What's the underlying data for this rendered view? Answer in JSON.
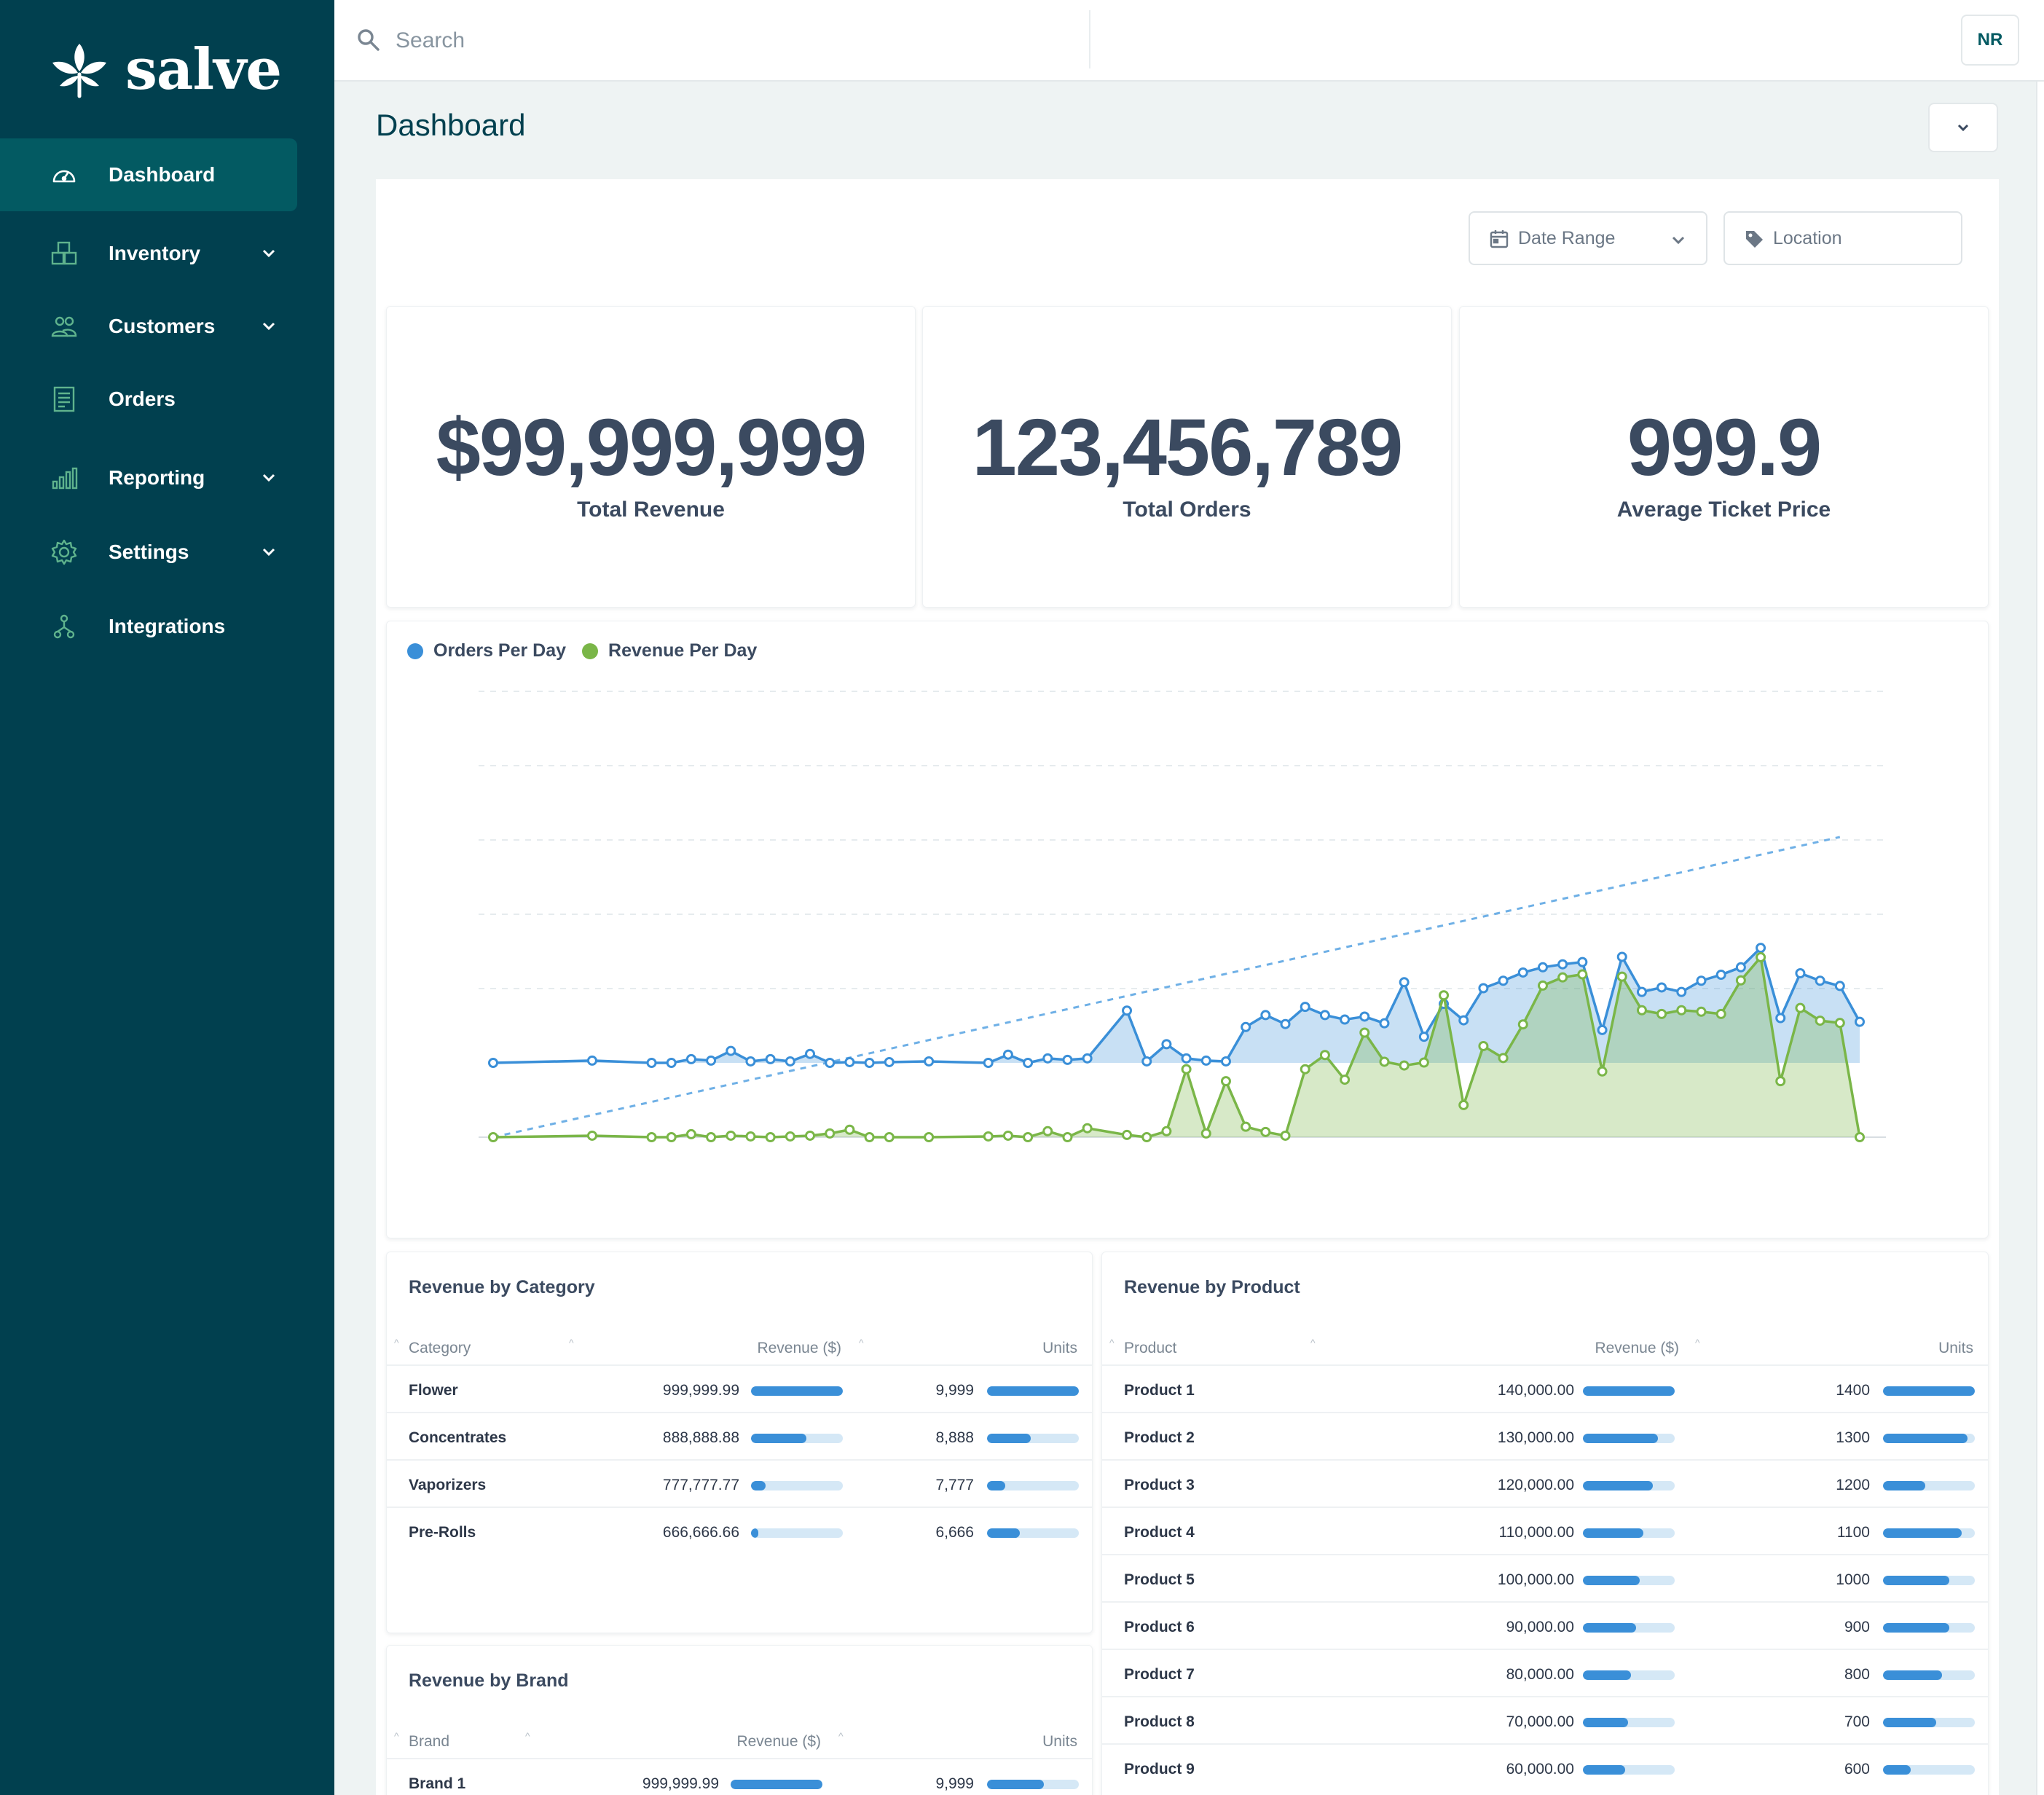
{
  "app": {
    "brand": "salve",
    "avatar_initials": "NR"
  },
  "colors": {
    "sidebar": "#01404f",
    "active": "#035a62",
    "orders": "#3a8fd8",
    "revenue": "#7ab648",
    "text": "#3b4a60"
  },
  "search": {
    "placeholder": "Search"
  },
  "sidebar": {
    "items": [
      {
        "label": "Dashboard",
        "icon": "gauge-icon",
        "active": true,
        "has_chevron": false
      },
      {
        "label": "Inventory",
        "icon": "boxes-icon",
        "active": false,
        "has_chevron": true
      },
      {
        "label": "Customers",
        "icon": "users-icon",
        "active": false,
        "has_chevron": true
      },
      {
        "label": "Orders",
        "icon": "receipt-icon",
        "active": false,
        "has_chevron": false
      },
      {
        "label": "Reporting",
        "icon": "bar-chart-icon",
        "active": false,
        "has_chevron": true
      },
      {
        "label": "Settings",
        "icon": "gear-icon",
        "active": false,
        "has_chevron": true
      },
      {
        "label": "Integrations",
        "icon": "network-icon",
        "active": false,
        "has_chevron": false
      }
    ]
  },
  "page": {
    "title": "Dashboard"
  },
  "filters": {
    "date_range": "Date Range",
    "location": "Location"
  },
  "kpis": [
    {
      "value": "$99,999,999",
      "label": "Total Revenue"
    },
    {
      "value": "123,456,789",
      "label": "Total Orders"
    },
    {
      "value": "999.9",
      "label": "Average Ticket Price"
    }
  ],
  "chart_data": {
    "type": "area",
    "series": [
      {
        "name": "Orders Per Day",
        "color": "#3a8fd8",
        "values": [
          0.0,
          0.03,
          0.0,
          0.0,
          0.05,
          0.03,
          0.16,
          0.02,
          0.05,
          0.02,
          0.12,
          0.0,
          0.01,
          0.0,
          0.01,
          0.02,
          0.0,
          0.11,
          0.0,
          0.06,
          0.04,
          0.06,
          0.7,
          0.02,
          0.25,
          0.06,
          0.03,
          0.02,
          0.48,
          0.64,
          0.52,
          0.75,
          0.64,
          0.58,
          0.62,
          0.53,
          1.08,
          0.35,
          0.79,
          0.57,
          1.0,
          1.1,
          1.21,
          1.28,
          1.32,
          1.35,
          0.44,
          1.42,
          0.95,
          1.01,
          0.95,
          1.1,
          1.18,
          1.28,
          1.54,
          0.6,
          1.2,
          1.1,
          1.03,
          0.55
        ]
      },
      {
        "name": "Revenue Per Day",
        "color": "#7ab648",
        "values": [
          0.0,
          0.02,
          0.0,
          0.0,
          0.04,
          0.0,
          0.02,
          0.01,
          0.0,
          0.01,
          0.02,
          0.05,
          0.1,
          0.0,
          0.0,
          0.0,
          0.01,
          0.02,
          0.0,
          0.08,
          0.0,
          0.12,
          0.03,
          0.0,
          0.08,
          0.91,
          0.05,
          0.75,
          0.14,
          0.07,
          0.02,
          0.91,
          1.1,
          0.77,
          1.4,
          1.01,
          0.96,
          1.0,
          1.9,
          0.43,
          1.22,
          1.06,
          1.51,
          2.03,
          2.14,
          2.18,
          0.88,
          2.15,
          1.7,
          1.65,
          1.7,
          1.68,
          1.65,
          2.1,
          2.41,
          0.75,
          1.73,
          1.56,
          1.53,
          0.0
        ]
      }
    ],
    "x": [
      0,
      5,
      8,
      9,
      10,
      11,
      12,
      13,
      14,
      15,
      16,
      17,
      18,
      19,
      20,
      22,
      25,
      26,
      27,
      28,
      29,
      30,
      32,
      33,
      34,
      35,
      36,
      37,
      38,
      39,
      40,
      41,
      42,
      43,
      44,
      45,
      46,
      47,
      48,
      49,
      50,
      51,
      52,
      53,
      54,
      55,
      56,
      57,
      58,
      59,
      60,
      61,
      62,
      63,
      64,
      65,
      66,
      67,
      68,
      69
    ],
    "trendline": "dashed, Orders Per Day",
    "grid": "horizontal dashed",
    "legend": "top-left"
  },
  "revenue_by_category": {
    "title": "Revenue by Category",
    "headers": {
      "name": "Category",
      "revenue": "Revenue ($)",
      "units": "Units"
    },
    "rows": [
      {
        "name": "Flower",
        "revenue": "999,999.99",
        "units": "9,999",
        "revenue_pct": 100,
        "units_pct": 100
      },
      {
        "name": "Concentrates",
        "revenue": "888,888.88",
        "units": "8,888",
        "revenue_pct": 60,
        "units_pct": 48
      },
      {
        "name": "Vaporizers",
        "revenue": "777,777.77",
        "units": "7,777",
        "revenue_pct": 16,
        "units_pct": 20
      },
      {
        "name": "Pre-Rolls",
        "revenue": "666,666.66",
        "units": "6,666",
        "revenue_pct": 8,
        "units_pct": 36
      }
    ]
  },
  "revenue_by_product": {
    "title": "Revenue by Product",
    "headers": {
      "name": "Product",
      "revenue": "Revenue ($)",
      "units": "Units"
    },
    "rows": [
      {
        "name": "Product 1",
        "revenue": "140,000.00",
        "units": "1400",
        "revenue_pct": 100,
        "units_pct": 100
      },
      {
        "name": "Product 2",
        "revenue": "130,000.00",
        "units": "1300",
        "revenue_pct": 82,
        "units_pct": 92
      },
      {
        "name": "Product 3",
        "revenue": "120,000.00",
        "units": "1200",
        "revenue_pct": 76,
        "units_pct": 46
      },
      {
        "name": "Product 4",
        "revenue": "110,000.00",
        "units": "1100",
        "revenue_pct": 66,
        "units_pct": 86
      },
      {
        "name": "Product 5",
        "revenue": "100,000.00",
        "units": "1000",
        "revenue_pct": 62,
        "units_pct": 72
      },
      {
        "name": "Product 6",
        "revenue": "90,000.00",
        "units": "900",
        "revenue_pct": 58,
        "units_pct": 72
      },
      {
        "name": "Product 7",
        "revenue": "80,000.00",
        "units": "800",
        "revenue_pct": 52,
        "units_pct": 64
      },
      {
        "name": "Product 8",
        "revenue": "70,000.00",
        "units": "700",
        "revenue_pct": 49,
        "units_pct": 58
      },
      {
        "name": "Product 9",
        "revenue": "60,000.00",
        "units": "600",
        "revenue_pct": 46,
        "units_pct": 30
      }
    ]
  },
  "revenue_by_brand": {
    "title": "Revenue by Brand",
    "headers": {
      "name": "Brand",
      "revenue": "Revenue ($)",
      "units": "Units"
    },
    "rows": [
      {
        "name": "Brand 1",
        "revenue": "999,999.99",
        "units": "9,999",
        "revenue_pct": 100,
        "units_pct": 62
      }
    ]
  }
}
